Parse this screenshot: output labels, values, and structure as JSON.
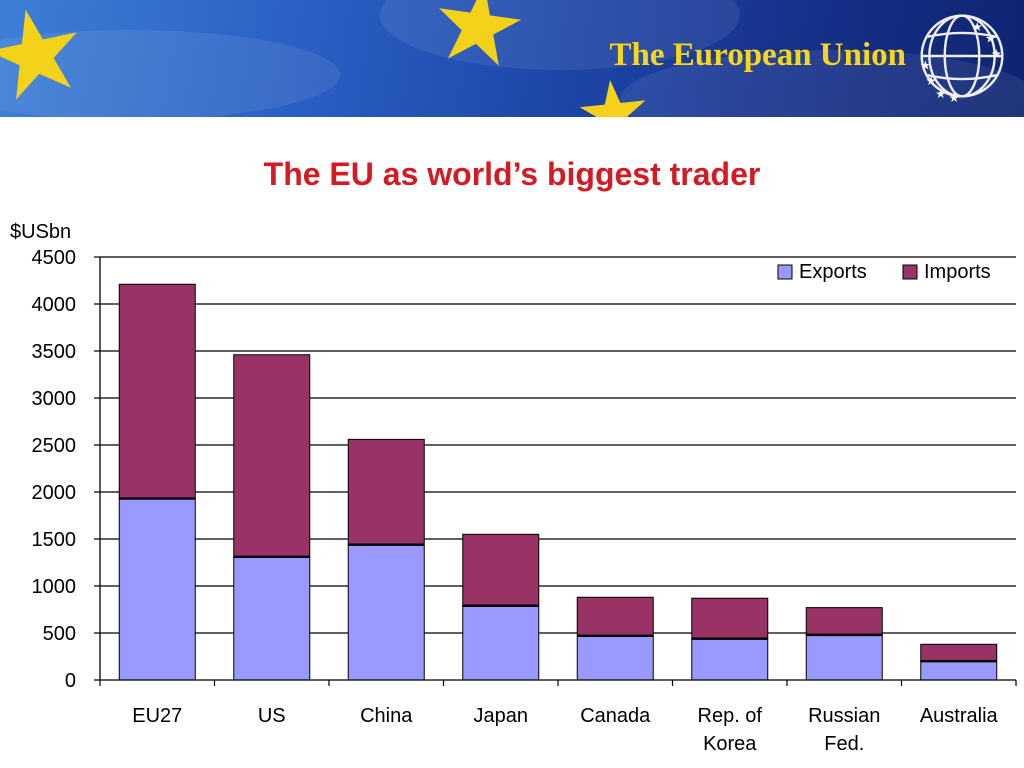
{
  "header": {
    "brand_title": "The European Union"
  },
  "colors": {
    "banner_blue": "#1d46a8",
    "brand_gold": "#f6d61e",
    "title_red": "#d41a22",
    "exports": "#9999ff",
    "imports": "#993366"
  },
  "slide": {
    "title": "The EU as world’s biggest trader"
  },
  "chart_data": {
    "type": "bar",
    "stacked": true,
    "ylabel": "$USbn",
    "ylim": [
      0,
      4500
    ],
    "yticks": [
      0,
      500,
      1000,
      1500,
      2000,
      2500,
      3000,
      3500,
      4000,
      4500
    ],
    "grid": true,
    "legend_position": "top-right",
    "categories": [
      [
        "EU27"
      ],
      [
        "US"
      ],
      [
        "China"
      ],
      [
        "Japan"
      ],
      [
        "Canada"
      ],
      [
        "Rep. of",
        "Korea"
      ],
      [
        "Russian",
        "Fed."
      ],
      [
        "Australia"
      ]
    ],
    "series": [
      {
        "name": "Exports",
        "color": "#9999ff",
        "values": [
          1930,
          1310,
          1440,
          790,
          470,
          440,
          480,
          200
        ]
      },
      {
        "name": "Imports",
        "color": "#993366",
        "values": [
          2280,
          2150,
          1120,
          760,
          410,
          430,
          290,
          180
        ]
      }
    ]
  }
}
